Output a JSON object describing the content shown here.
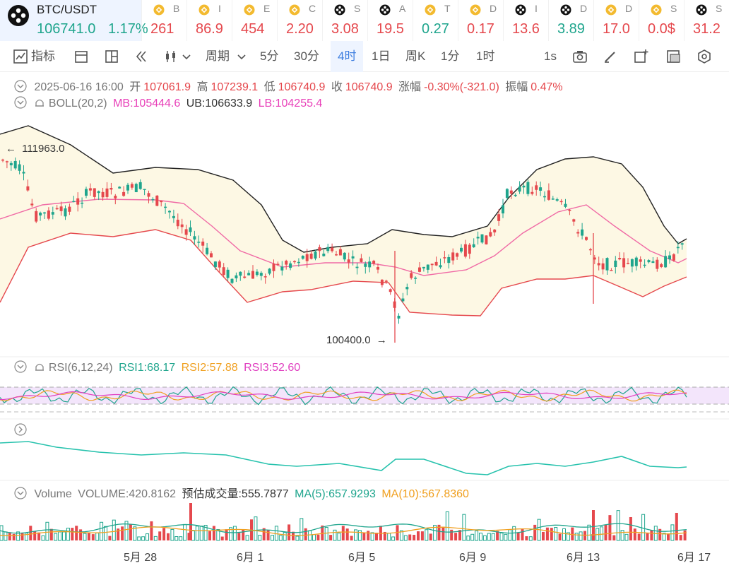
{
  "pair": {
    "name": "BTC/USDT",
    "price": "106741.0",
    "change": "1.17%"
  },
  "tickers": [
    {
      "icon": "bnb-icon",
      "name": "B",
      "value": "261",
      "dir": "up"
    },
    {
      "icon": "bnb-icon",
      "name": "I",
      "value": "86.9",
      "dir": "up"
    },
    {
      "icon": "bnb-icon",
      "name": "E",
      "value": "454",
      "dir": "up"
    },
    {
      "icon": "bnb-icon",
      "name": "C",
      "value": "2.20",
      "dir": "up"
    },
    {
      "icon": "chain-icon",
      "name": "S",
      "value": "3.08",
      "dir": "up"
    },
    {
      "icon": "chain-icon",
      "name": "A",
      "value": "19.5",
      "dir": "up"
    },
    {
      "icon": "bnb-icon",
      "name": "T",
      "value": "0.27",
      "dir": "down"
    },
    {
      "icon": "bnb-icon",
      "name": "D",
      "value": "0.17",
      "dir": "up"
    },
    {
      "icon": "chain-icon",
      "name": "I",
      "value": "13.6",
      "dir": "up"
    },
    {
      "icon": "chain-icon",
      "name": "D",
      "value": "3.89",
      "dir": "down"
    },
    {
      "icon": "bnb-icon",
      "name": "D",
      "value": "17.0",
      "dir": "up"
    },
    {
      "icon": "bnb-icon",
      "name": "S",
      "value": "0.0$",
      "dir": "up"
    },
    {
      "icon": "chain-icon",
      "name": "S",
      "value": "31.2",
      "dir": "up"
    }
  ],
  "toolbar": {
    "indicator": "指标",
    "period": "周期",
    "intervals": [
      "5分",
      "30分",
      "4时",
      "1日",
      "周K",
      "1分",
      "1时"
    ],
    "active": "4时",
    "refresh": "1s"
  },
  "ohlc": {
    "date": "2025-06-16 16:00",
    "open_label": "开",
    "open": "107061.9",
    "high_label": "高",
    "high": "107239.1",
    "low_label": "低",
    "low": "106740.9",
    "close_label": "收",
    "close": "106740.9",
    "change_label": "涨幅",
    "change": "-0.30%(-321.0)",
    "amp_label": "振幅",
    "amp": "0.47%"
  },
  "boll": {
    "name": "BOLL(20,2)",
    "mb": "MB:105444.6",
    "ub": "UB:106633.9",
    "lb": "LB:104255.4"
  },
  "markers": {
    "high": "111963.0",
    "low": "100400.0"
  },
  "rsi": {
    "name": "RSI(6,12,24)",
    "rsi1": "RSI1:68.17",
    "rsi2": "RSI2:57.88",
    "rsi3": "RSI3:52.60"
  },
  "volume": {
    "name": "Volume",
    "volume": "VOLUME:420.8162",
    "estimate": "预估成交量:555.7877",
    "ma5": "MA(5):657.9293",
    "ma10": "MA(10):567.8360"
  },
  "x_labels": [
    "5月 28",
    "6月 1",
    "6月 5",
    "6月 9",
    "6月 13",
    "6月 17"
  ],
  "colors": {
    "up": "#e5484d",
    "down": "#1fa58d",
    "accent": "#3f7fe0"
  },
  "chart_data": {
    "type": "candlestick",
    "interval": "4h",
    "price_range": [
      100400.0,
      111963.0
    ],
    "x_ticks": [
      "5月 28",
      "6月 1",
      "6月 5",
      "6月 9",
      "6月 13",
      "6月 17"
    ],
    "last": {
      "open": 107061.9,
      "high": 107239.1,
      "low": 106740.9,
      "close": 106740.9
    },
    "boll": {
      "mb": 105444.6,
      "ub": 106633.9,
      "lb": 104255.4
    },
    "rsi": {
      "rsi1": 68.17,
      "rsi2": 57.88,
      "rsi3": 52.6
    },
    "volume": {
      "volume": 420.8162,
      "ma5": 657.9293,
      "ma10": 567.836
    }
  }
}
